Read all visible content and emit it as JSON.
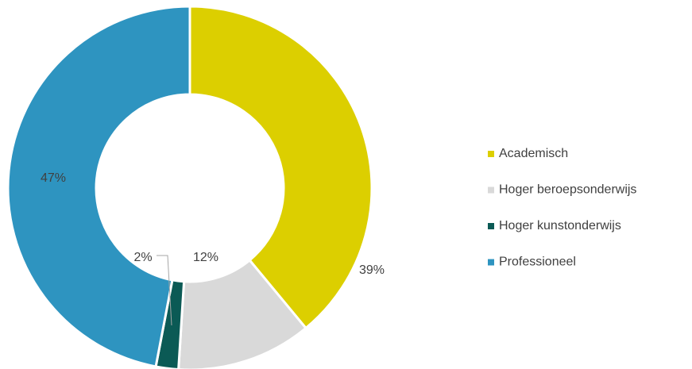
{
  "chart_data": {
    "type": "donut",
    "categories": [
      "Academisch",
      "Hoger beroepsonderwijs",
      "Hoger kunstonderwijs",
      "Professioneel"
    ],
    "values": [
      39,
      12,
      2,
      47
    ],
    "value_labels": [
      "39%",
      "12%",
      "2%",
      "47%"
    ],
    "colors": [
      "#dccf00",
      "#d9d9d9",
      "#0b5a55",
      "#2e94c0"
    ],
    "legend": "right"
  }
}
